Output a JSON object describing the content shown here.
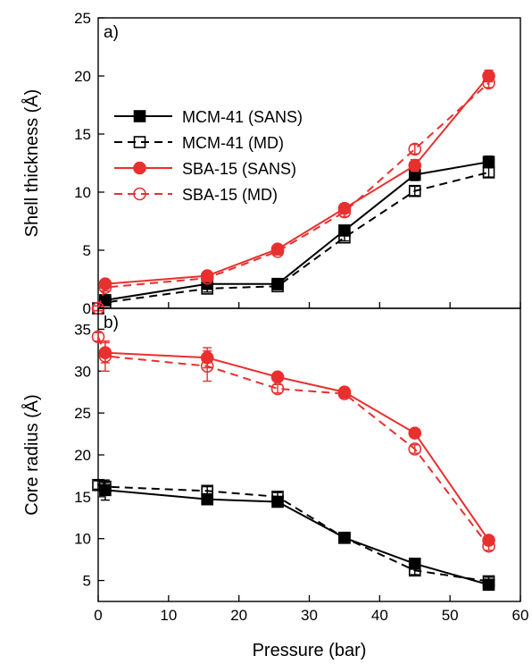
{
  "chart_data": {
    "type": "line",
    "xlabel": "Pressure (bar)",
    "xlim": [
      0,
      60
    ],
    "xticks": [
      0,
      10,
      20,
      30,
      40,
      50,
      60
    ],
    "panels": [
      {
        "label": "a)",
        "ylabel": "Shell thickness (Å)",
        "ylim": [
          0,
          25
        ],
        "yticks": [
          0,
          5,
          10,
          15,
          20,
          25
        ],
        "legend": "upper-left",
        "series": [
          {
            "name": "MCM-41 (SANS)",
            "color": "#000000",
            "marker": "square",
            "filled": true,
            "dashed": false,
            "x": [
              1,
              15.5,
              25.5,
              35,
              45,
              55.5
            ],
            "y": [
              0.7,
              2.1,
              2.1,
              6.7,
              11.5,
              12.6
            ],
            "err": [
              0.3,
              0.3,
              0.3,
              0.4,
              0.5,
              0.5
            ]
          },
          {
            "name": "MCM-41 (MD)",
            "color": "#000000",
            "marker": "square",
            "filled": false,
            "dashed": true,
            "x": [
              0,
              1,
              15.5,
              25.5,
              35,
              45,
              55.5
            ],
            "y": [
              0,
              0.5,
              1.7,
              1.9,
              6.1,
              10.1,
              11.7
            ],
            "err": [
              0.2,
              0.2,
              0.3,
              0.3,
              0.3,
              0.4,
              0.4
            ]
          },
          {
            "name": "SBA-15 (SANS)",
            "color": "#e8302f",
            "marker": "circle",
            "filled": true,
            "dashed": false,
            "x": [
              1,
              15.5,
              25.5,
              35,
              45,
              55.5
            ],
            "y": [
              2.1,
              2.8,
              5.1,
              8.6,
              12.3,
              20.0
            ],
            "err": [
              0.3,
              0.3,
              0.3,
              0.4,
              0.5,
              0.5
            ]
          },
          {
            "name": "SBA-15 (MD)",
            "color": "#e8302f",
            "marker": "circle",
            "filled": false,
            "dashed": true,
            "x": [
              0,
              1,
              15.5,
              25.5,
              35,
              45,
              55.5
            ],
            "y": [
              0,
              1.8,
              2.6,
              4.9,
              8.3,
              13.7,
              19.4
            ],
            "err": [
              0.2,
              0.3,
              0.3,
              0.3,
              0.4,
              0.4,
              0.4
            ]
          }
        ]
      },
      {
        "label": "b)",
        "ylabel": "Core radius (Å)",
        "ylim": [
          2.5,
          37.5
        ],
        "yticks": [
          5,
          10,
          15,
          20,
          25,
          30,
          35
        ],
        "series": [
          {
            "name": "MCM-41 (SANS)",
            "color": "#000000",
            "marker": "square",
            "filled": true,
            "dashed": false,
            "x": [
              1,
              15.5,
              25.5,
              35,
              45,
              55.5
            ],
            "y": [
              15.8,
              14.7,
              14.4,
              10.1,
              7.0,
              4.5
            ],
            "err": [
              1.2,
              0.5,
              0.5,
              0.5,
              0.5,
              0.5
            ]
          },
          {
            "name": "MCM-41 (MD)",
            "color": "#000000",
            "marker": "square",
            "filled": false,
            "dashed": true,
            "x": [
              0,
              1,
              15.5,
              25.5,
              35,
              45,
              55.5
            ],
            "y": [
              16.4,
              16.2,
              15.7,
              15.0,
              10.1,
              6.2,
              4.9
            ],
            "err": [
              0.5,
              0.5,
              0.5,
              0.5,
              0.5,
              0.5,
              0.5
            ]
          },
          {
            "name": "SBA-15 (SANS)",
            "color": "#e8302f",
            "marker": "circle",
            "filled": true,
            "dashed": false,
            "x": [
              1,
              15.5,
              25.5,
              35,
              45,
              55.5
            ],
            "y": [
              32.2,
              31.6,
              29.3,
              27.5,
              22.6,
              9.8
            ],
            "err": [
              1.2,
              1.2,
              0.5,
              0.5,
              0.5,
              0.5
            ]
          },
          {
            "name": "SBA-15 (MD)",
            "color": "#e8302f",
            "marker": "circle",
            "filled": false,
            "dashed": true,
            "x": [
              0,
              1,
              15.5,
              25.5,
              35,
              45,
              55.5
            ],
            "y": [
              34.1,
              31.8,
              30.6,
              27.9,
              27.3,
              20.7,
              9.1
            ],
            "err": [
              0.5,
              1.8,
              1.8,
              0.5,
              0.5,
              0.5,
              0.5
            ]
          }
        ]
      }
    ]
  }
}
